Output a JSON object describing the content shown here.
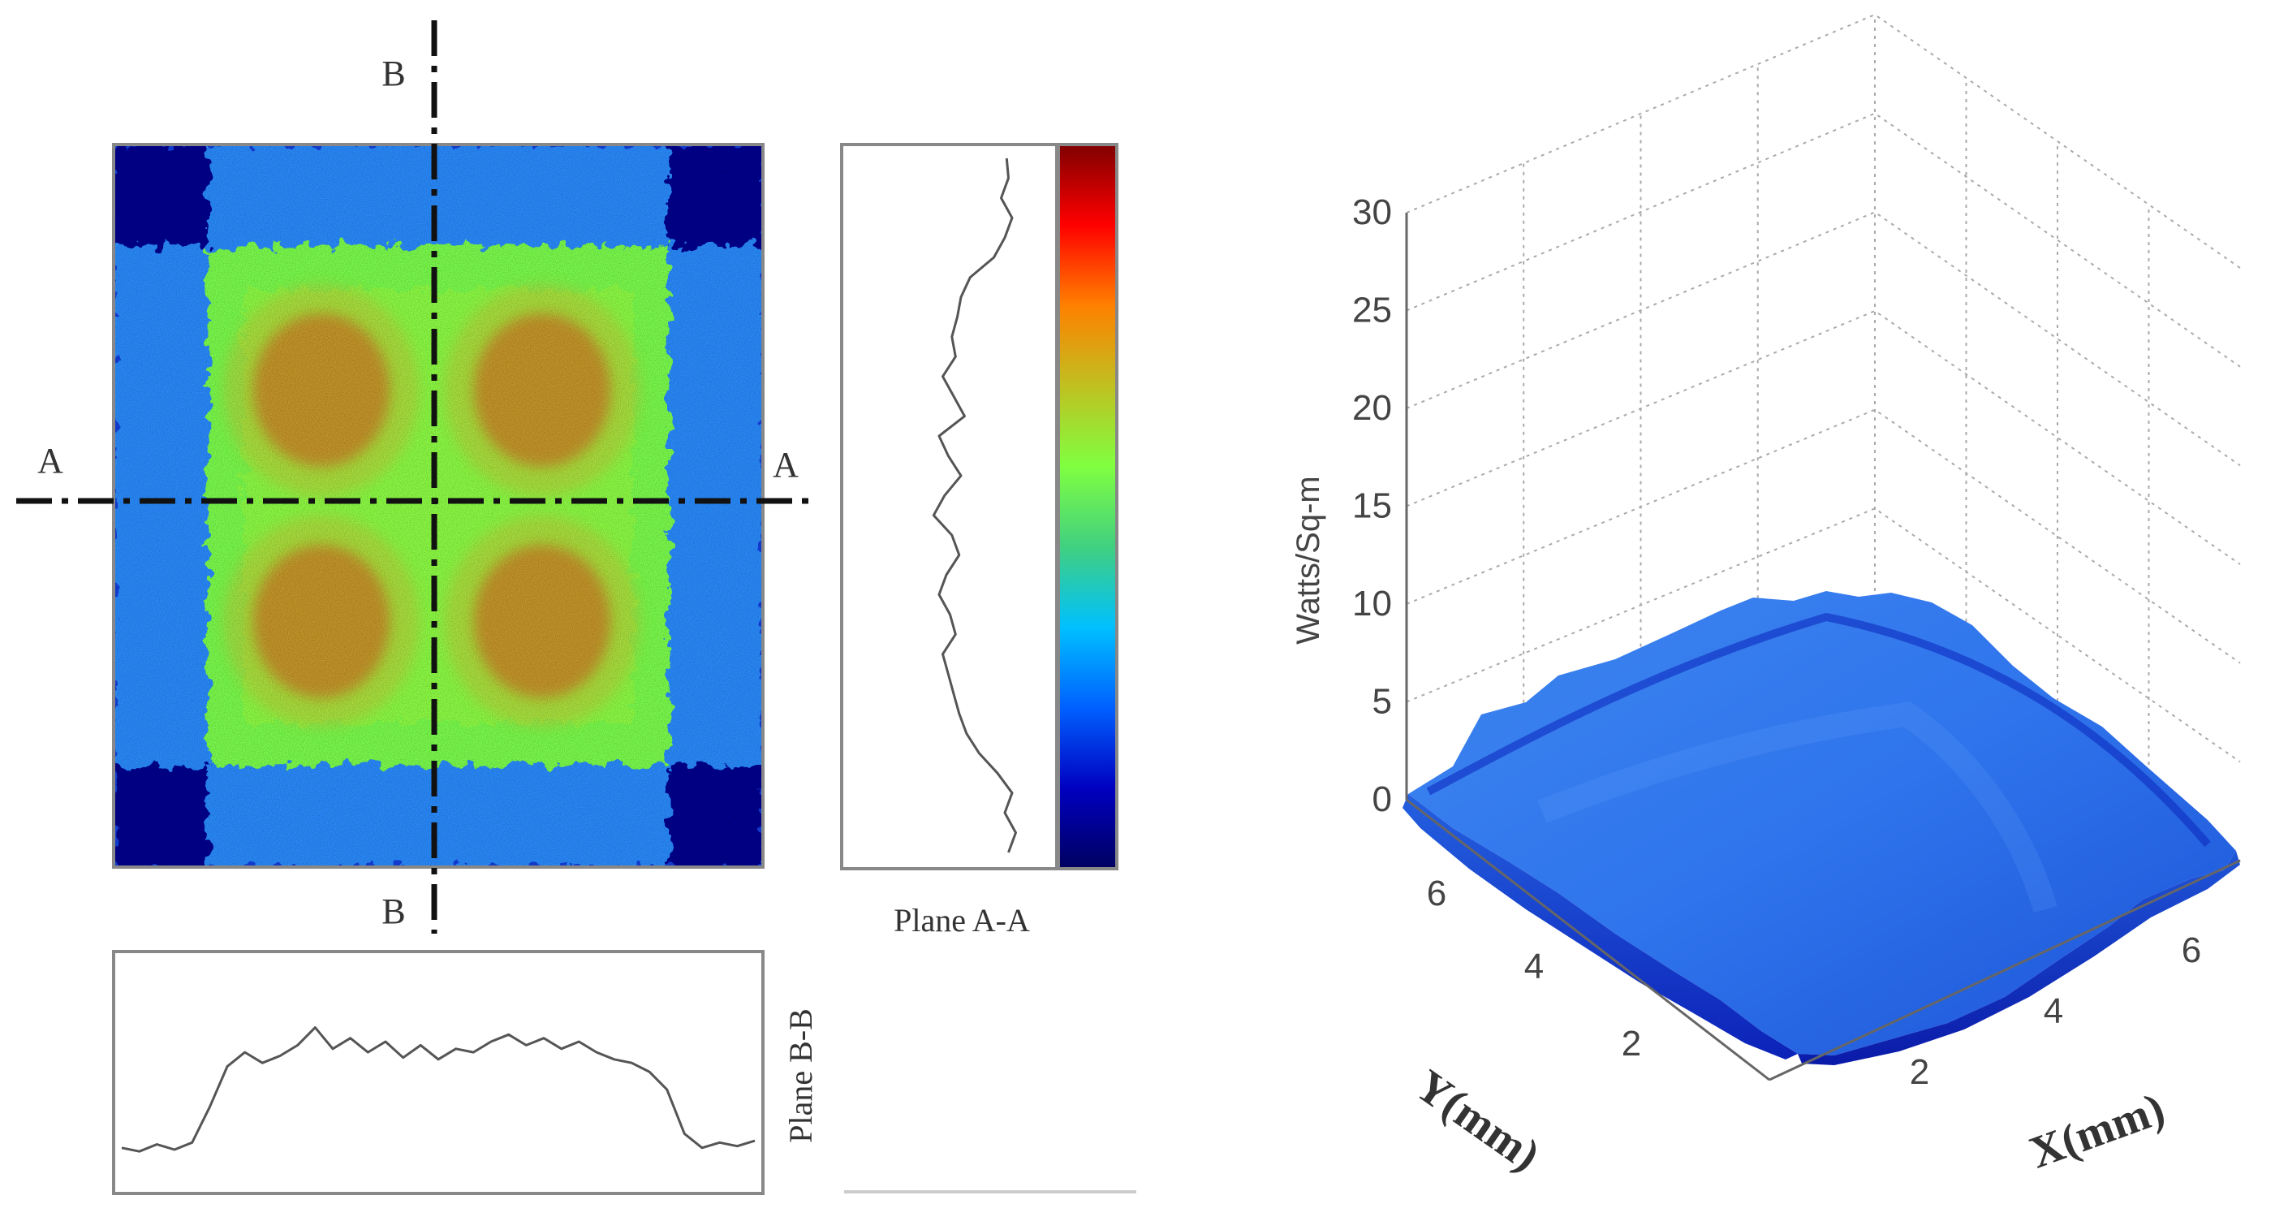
{
  "colors": {
    "map_low": "#00008f",
    "map_mid_blue": "#1e64ff",
    "map_green": "#7cff4e",
    "map_high": "#c75d1c",
    "colorbar": [
      "#800000",
      "#ff0000",
      "#ff8000",
      "#c0c020",
      "#80ff40",
      "#40d080",
      "#00c0ff",
      "#0060ff",
      "#0000c0",
      "#000060"
    ],
    "surface_top": "#2b6fe6",
    "surface_edge": "#0a1fb0"
  },
  "section_labels": {
    "a_left": "A",
    "a_right": "A",
    "b_top": "B",
    "b_bottom": "B"
  },
  "plane_aa_label": "Plane A-A",
  "plane_bb_label": "Plane B-B",
  "chart_data": [
    {
      "type": "heatmap",
      "title": "",
      "description_values": {
        "grid": [
          [
            0.1,
            0.3,
            0.3,
            0.3,
            0.3,
            0.1
          ],
          [
            0.3,
            0.6,
            0.62,
            0.62,
            0.6,
            0.3
          ],
          [
            0.3,
            0.62,
            0.85,
            0.85,
            0.62,
            0.3
          ],
          [
            0.3,
            0.62,
            0.85,
            0.85,
            0.62,
            0.3
          ],
          [
            0.3,
            0.6,
            0.62,
            0.62,
            0.6,
            0.3
          ],
          [
            0.1,
            0.3,
            0.3,
            0.3,
            0.3,
            0.1
          ]
        ]
      },
      "colorbar": true,
      "grid": false
    },
    {
      "type": "line",
      "name": "Plane A-A",
      "orientation": "vertical",
      "values": [
        0.15,
        0.14,
        0.18,
        0.12,
        0.16,
        0.22,
        0.35,
        0.4,
        0.42,
        0.45,
        0.43,
        0.5,
        0.44,
        0.38,
        0.52,
        0.47,
        0.4,
        0.49,
        0.55,
        0.45,
        0.41,
        0.48,
        0.52,
        0.46,
        0.43,
        0.5,
        0.47,
        0.44,
        0.41,
        0.37,
        0.3,
        0.2,
        0.12,
        0.16,
        0.1,
        0.14
      ]
    },
    {
      "type": "line",
      "name": "Plane B-B",
      "orientation": "horizontal",
      "values": [
        0.12,
        0.1,
        0.14,
        0.11,
        0.15,
        0.35,
        0.58,
        0.66,
        0.6,
        0.64,
        0.7,
        0.8,
        0.68,
        0.74,
        0.66,
        0.72,
        0.63,
        0.7,
        0.62,
        0.68,
        0.66,
        0.72,
        0.76,
        0.7,
        0.74,
        0.68,
        0.72,
        0.66,
        0.62,
        0.6,
        0.55,
        0.45,
        0.2,
        0.12,
        0.15,
        0.13,
        0.16
      ]
    },
    {
      "type": "surface3d",
      "zlabel": "Watts/Sq-m",
      "xlabel": "X(mm)",
      "ylabel": "Y(mm)",
      "zticks": [
        "0",
        "5",
        "10",
        "15",
        "20",
        "25",
        "30"
      ],
      "xticks": [
        "2",
        "4",
        "6"
      ],
      "yticks": [
        "2",
        "4",
        "6"
      ],
      "zlim": [
        0,
        30
      ],
      "xlim": [
        0,
        7
      ],
      "ylim": [
        0,
        7
      ],
      "plateau_value": 9,
      "edge_value": 0,
      "grid": true
    }
  ]
}
